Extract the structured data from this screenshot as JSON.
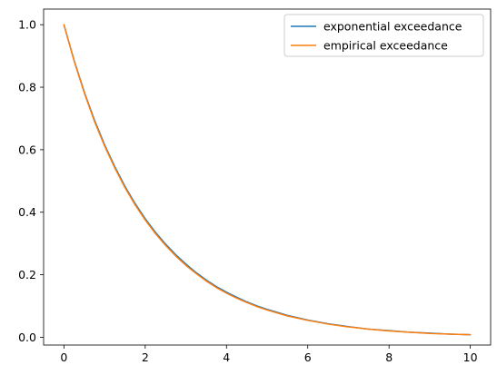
{
  "chart_data": {
    "type": "line",
    "title": "",
    "xlabel": "",
    "ylabel": "",
    "xlim": [
      -0.5,
      10.5
    ],
    "ylim": [
      -0.025,
      1.05
    ],
    "xticks": [
      0,
      2,
      4,
      6,
      8,
      10
    ],
    "yticks": [
      0.0,
      0.2,
      0.4,
      0.6,
      0.8,
      1.0
    ],
    "xtick_labels": [
      "0",
      "2",
      "4",
      "6",
      "8",
      "10"
    ],
    "ytick_labels": [
      "0.0",
      "0.2",
      "0.4",
      "0.6",
      "0.8",
      "1.0"
    ],
    "grid": false,
    "legend_position": "top-right",
    "series": [
      {
        "name": "exponential exceedance",
        "color": "#1f77b4",
        "x": [
          0,
          0.25,
          0.5,
          0.75,
          1,
          1.25,
          1.5,
          1.75,
          2,
          2.25,
          2.5,
          2.75,
          3,
          3.25,
          3.5,
          3.75,
          4,
          4.25,
          4.5,
          4.75,
          5,
          5.5,
          6,
          6.5,
          7,
          7.5,
          8,
          8.5,
          9,
          9.5,
          10
        ],
        "y": [
          1.0,
          0.886,
          0.785,
          0.695,
          0.616,
          0.546,
          0.483,
          0.428,
          0.379,
          0.336,
          0.298,
          0.264,
          0.234,
          0.207,
          0.183,
          0.162,
          0.144,
          0.128,
          0.113,
          0.1,
          0.089,
          0.07,
          0.055,
          0.043,
          0.034,
          0.026,
          0.021,
          0.016,
          0.013,
          0.01,
          0.008
        ]
      },
      {
        "name": "empirical exceedance",
        "color": "#ff7f0e",
        "x": [
          0,
          0.25,
          0.5,
          0.75,
          1,
          1.25,
          1.5,
          1.75,
          2,
          2.25,
          2.5,
          2.75,
          3,
          3.25,
          3.5,
          3.75,
          4,
          4.25,
          4.5,
          4.75,
          5,
          5.5,
          6,
          6.5,
          7,
          7.5,
          8,
          8.5,
          9,
          9.5,
          10
        ],
        "y": [
          1.0,
          0.884,
          0.782,
          0.691,
          0.612,
          0.542,
          0.479,
          0.424,
          0.375,
          0.332,
          0.294,
          0.26,
          0.23,
          0.204,
          0.18,
          0.159,
          0.141,
          0.125,
          0.111,
          0.098,
          0.087,
          0.068,
          0.054,
          0.042,
          0.033,
          0.026,
          0.02,
          0.016,
          0.012,
          0.01,
          0.008
        ]
      }
    ]
  }
}
